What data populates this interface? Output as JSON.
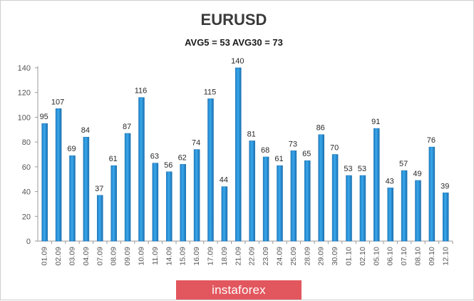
{
  "chart_data": {
    "type": "bar",
    "title": "EURUSD",
    "subtitle": "AVG5 = 53 AVG30 = 73",
    "xlabel": "",
    "ylabel": "",
    "ylim": [
      0,
      140
    ],
    "yticks": [
      0,
      20,
      40,
      60,
      80,
      100,
      120,
      140
    ],
    "categories": [
      "01.09",
      "02.09",
      "03.09",
      "04.09",
      "07.09",
      "08.09",
      "09.09",
      "10.09",
      "11.09",
      "14.09",
      "15.09",
      "16.09",
      "17.09",
      "18.09",
      "21.09",
      "22.09",
      "23.09",
      "24.09",
      "25.09",
      "28.09",
      "29.09",
      "30.09",
      "01.10",
      "02.10",
      "05.10",
      "06.10",
      "07.10",
      "08.10",
      "09.10",
      "12.10"
    ],
    "values": [
      95,
      107,
      69,
      84,
      37,
      61,
      87,
      116,
      63,
      56,
      62,
      74,
      115,
      44,
      140,
      81,
      68,
      61,
      73,
      65,
      86,
      70,
      53,
      53,
      91,
      43,
      57,
      49,
      76,
      39
    ],
    "colors": {
      "bar": "#2e9be0",
      "bar_dark": "#1a6fb0",
      "axis": "#9a9a9a"
    },
    "grid": false,
    "legend": "none"
  },
  "watermark": {
    "text": "instaforex"
  }
}
